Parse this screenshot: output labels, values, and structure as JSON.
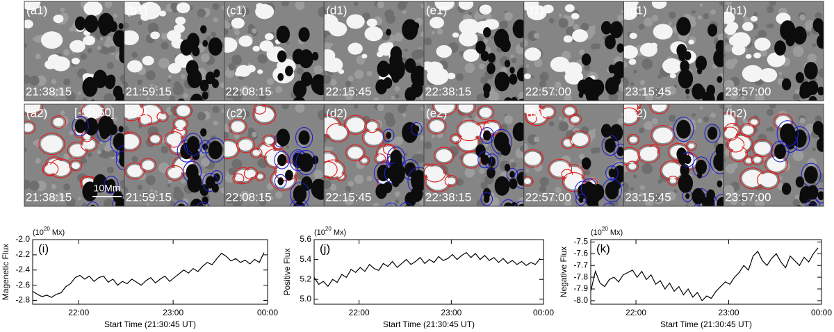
{
  "panels": {
    "row1": [
      {
        "label": "(a1)",
        "time": "21:38:15"
      },
      {
        "label": "(b1)",
        "time": "21:59:15"
      },
      {
        "label": "(c1)",
        "time": "22:08:15"
      },
      {
        "label": "(d1)",
        "time": "22:15:45"
      },
      {
        "label": "(e1)",
        "time": "22:38:15"
      },
      {
        "label": "(f1)",
        "time": "22:57:00"
      },
      {
        "label": "(g1)",
        "time": "23:15:45"
      },
      {
        "label": "(h1)",
        "time": "23:57:00"
      }
    ],
    "row2": [
      {
        "label": "(a2)",
        "time": "21:38:15"
      },
      {
        "label": "(b2)",
        "time": "21:59:15"
      },
      {
        "label": "(c2)",
        "time": "22:08:15"
      },
      {
        "label": "(d2)",
        "time": "22:15:45"
      },
      {
        "label": "(e2)",
        "time": "22:38:15"
      },
      {
        "label": "(f2)",
        "time": "22:57:00"
      },
      {
        "label": "(g2)",
        "time": "23:15:45"
      },
      {
        "label": "(h2)",
        "time": "23:57:00"
      }
    ],
    "range_label": "[-50,50]",
    "scale_label": "10Mm"
  },
  "chart_data": [
    {
      "type": "line",
      "panel_label": "(i)",
      "y_label": "Magenetic Flux",
      "x_label": "Start Time (21:30:45 UT)",
      "unit_prefix": "(10",
      "unit_exponent": "20",
      "unit_suffix": " Mx)",
      "x": [
        0,
        3,
        6,
        9,
        12,
        15,
        18,
        21,
        24,
        27,
        30,
        33,
        36,
        39,
        42,
        45,
        48,
        51,
        54,
        57,
        60,
        63,
        66,
        69,
        72,
        75,
        78,
        81,
        84,
        87,
        90,
        93,
        96,
        99,
        102,
        105,
        108,
        111,
        114,
        117,
        120,
        123,
        126,
        129,
        132,
        135,
        138,
        141,
        144,
        147
      ],
      "series": [
        {
          "color": "#000000",
          "values": [
            -2.68,
            -2.72,
            -2.75,
            -2.73,
            -2.76,
            -2.72,
            -2.7,
            -2.62,
            -2.58,
            -2.5,
            -2.47,
            -2.52,
            -2.48,
            -2.55,
            -2.5,
            -2.48,
            -2.56,
            -2.52,
            -2.6,
            -2.55,
            -2.58,
            -2.52,
            -2.56,
            -2.6,
            -2.54,
            -2.5,
            -2.57,
            -2.52,
            -2.48,
            -2.55,
            -2.5,
            -2.45,
            -2.4,
            -2.44,
            -2.38,
            -2.42,
            -2.35,
            -2.3,
            -2.33,
            -2.25,
            -2.18,
            -2.22,
            -2.28,
            -2.25,
            -2.3,
            -2.27,
            -2.32,
            -2.26,
            -2.3,
            -2.17
          ]
        }
      ],
      "xlim": [
        0,
        149.25
      ],
      "xticks": [
        {
          "value": 29.25,
          "label": "22:00"
        },
        {
          "value": 89.25,
          "label": "23:00"
        },
        {
          "value": 149.25,
          "label": "00:00"
        }
      ],
      "ylim": [
        -2.85,
        -2.0
      ],
      "yticks": [
        {
          "value": -2.8,
          "label": "-2.8"
        },
        {
          "value": -2.6,
          "label": "-2.6"
        },
        {
          "value": -2.4,
          "label": "-2.4"
        },
        {
          "value": -2.2,
          "label": "-2.2"
        },
        {
          "value": -2.0,
          "label": "-2.0"
        }
      ]
    },
    {
      "type": "line",
      "panel_label": "(j)",
      "y_label": "Positive Flux",
      "x_label": "Start Time (21:30:45 UT)",
      "unit_prefix": "(10",
      "unit_exponent": "20",
      "unit_suffix": " Mx)",
      "x": [
        0,
        3,
        6,
        9,
        12,
        15,
        18,
        21,
        24,
        27,
        30,
        33,
        36,
        39,
        42,
        45,
        48,
        51,
        54,
        57,
        60,
        63,
        66,
        69,
        72,
        75,
        78,
        81,
        84,
        87,
        90,
        93,
        96,
        99,
        102,
        105,
        108,
        111,
        114,
        117,
        120,
        123,
        126,
        129,
        132,
        135,
        138,
        141,
        144,
        147
      ],
      "series": [
        {
          "color": "#000000",
          "values": [
            5.22,
            5.15,
            5.18,
            5.13,
            5.2,
            5.17,
            5.25,
            5.22,
            5.3,
            5.27,
            5.32,
            5.28,
            5.35,
            5.31,
            5.29,
            5.36,
            5.33,
            5.38,
            5.32,
            5.36,
            5.4,
            5.35,
            5.38,
            5.42,
            5.36,
            5.4,
            5.37,
            5.43,
            5.39,
            5.41,
            5.45,
            5.4,
            5.44,
            5.47,
            5.42,
            5.46,
            5.4,
            5.44,
            5.39,
            5.42,
            5.37,
            5.41,
            5.36,
            5.39,
            5.35,
            5.38,
            5.34,
            5.37,
            5.35,
            5.41
          ]
        }
      ],
      "xlim": [
        0,
        149.25
      ],
      "xticks": [
        {
          "value": 29.25,
          "label": "22:00"
        },
        {
          "value": 89.25,
          "label": "23:00"
        },
        {
          "value": 149.25,
          "label": "00:00"
        }
      ],
      "ylim": [
        4.95,
        5.6
      ],
      "yticks": [
        {
          "value": 5.0,
          "label": "5.0"
        },
        {
          "value": 5.2,
          "label": "5.2"
        },
        {
          "value": 5.4,
          "label": "5.4"
        },
        {
          "value": 5.6,
          "label": "5.6"
        }
      ]
    },
    {
      "type": "line",
      "panel_label": "(k)",
      "y_label": "Negative Flux",
      "x_label": "Start Time (21:30:45 UT)",
      "unit_prefix": "(10",
      "unit_exponent": "20",
      "unit_suffix": " Mx)",
      "x": [
        0,
        3,
        6,
        9,
        12,
        15,
        18,
        21,
        24,
        27,
        30,
        33,
        36,
        39,
        42,
        45,
        48,
        51,
        54,
        57,
        60,
        63,
        66,
        69,
        72,
        75,
        78,
        81,
        84,
        87,
        90,
        93,
        96,
        99,
        102,
        105,
        108,
        111,
        114,
        117,
        120,
        123,
        126,
        129,
        132,
        135,
        138,
        141,
        144,
        147
      ],
      "series": [
        {
          "color": "#000000",
          "values": [
            -7.92,
            -7.75,
            -7.85,
            -7.88,
            -7.82,
            -7.8,
            -7.84,
            -7.78,
            -7.76,
            -7.74,
            -7.8,
            -7.75,
            -7.82,
            -7.78,
            -7.86,
            -7.83,
            -7.9,
            -7.85,
            -7.92,
            -7.88,
            -7.95,
            -7.9,
            -7.97,
            -7.93,
            -8.0,
            -7.96,
            -7.98,
            -7.92,
            -7.88,
            -7.84,
            -7.86,
            -7.8,
            -7.76,
            -7.7,
            -7.74,
            -7.62,
            -7.58,
            -7.66,
            -7.7,
            -7.64,
            -7.6,
            -7.67,
            -7.72,
            -7.62,
            -7.66,
            -7.7,
            -7.63,
            -7.67,
            -7.6,
            -7.55
          ]
        }
      ],
      "xlim": [
        0,
        149.25
      ],
      "xticks": [
        {
          "value": 29.25,
          "label": "22:00"
        },
        {
          "value": 89.25,
          "label": "23:00"
        },
        {
          "value": 149.25,
          "label": "00:00"
        }
      ],
      "ylim": [
        -8.03,
        -7.48
      ],
      "yticks": [
        {
          "value": -8.0,
          "label": "-8.0"
        },
        {
          "value": -7.9,
          "label": "-7.9"
        },
        {
          "value": -7.8,
          "label": "-7.8"
        },
        {
          "value": -7.7,
          "label": "-7.7"
        },
        {
          "value": -7.6,
          "label": "-7.6"
        },
        {
          "value": -7.5,
          "label": "-7.5"
        }
      ]
    }
  ]
}
